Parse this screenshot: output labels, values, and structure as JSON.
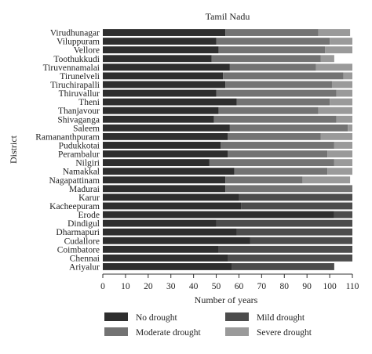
{
  "chart_data": {
    "type": "bar",
    "orientation": "horizontal",
    "stacked": true,
    "title": "Tamil Nadu",
    "xlabel": "Number of years",
    "ylabel": "District",
    "xlim": [
      0,
      110
    ],
    "xticks": [
      "0",
      "10",
      "20",
      "30",
      "40",
      "50",
      "60",
      "70",
      "80",
      "90",
      "100",
      "110"
    ],
    "grid": false,
    "legend_position": "bottom",
    "categories": [
      "Virudhunagar",
      "Viluppuram",
      "Vellore",
      "Toothukkudi",
      "Tiruvennamalai",
      "Tirunelveli",
      "Tiruchirapalli",
      "Thiruvallur",
      "Theni",
      "Thanjavour",
      "Shivaganga",
      "Saleem",
      "Ramananthpuram",
      "Pudukkotai",
      "Perambalur",
      "Nilgiri",
      "Namakkal",
      "Nagapattinam",
      "Madurai",
      "Karur",
      "Kacheepuram",
      "Erode",
      "Dindigul",
      "Dharmapuri",
      "Cudallore",
      "Coimbatore",
      "Chennai",
      "Ariyalur"
    ],
    "series": [
      {
        "name": "No drought",
        "color": "#2e2e2e",
        "values": [
          54,
          50,
          51,
          48,
          56,
          53,
          54,
          50,
          59,
          51,
          49,
          56,
          55,
          52,
          55,
          47,
          58,
          54,
          54,
          60,
          61,
          102,
          50,
          59,
          65,
          51,
          55,
          57
        ]
      },
      {
        "name": "Mild drought",
        "color": "#4c4c4c",
        "values": [
          0,
          0,
          0,
          0,
          0,
          0,
          0,
          0,
          0,
          0,
          0,
          0,
          0,
          0,
          0,
          0,
          0,
          0,
          0,
          50,
          49,
          8,
          60,
          51,
          45,
          59,
          55,
          45
        ]
      },
      {
        "name": "Moderate drought",
        "color": "#737373",
        "values": [
          41,
          50,
          47,
          48,
          38,
          53,
          47,
          53,
          41,
          44,
          54,
          52,
          41,
          50,
          44,
          55,
          41,
          34,
          56,
          0,
          0,
          0,
          0,
          0,
          0,
          0,
          0,
          0
        ]
      },
      {
        "name": "Severe drought",
        "color": "#9a9a9a",
        "values": [
          14,
          10,
          12,
          6,
          16,
          4,
          9,
          7,
          10,
          15,
          7,
          2,
          14,
          8,
          11,
          8,
          11,
          21,
          0,
          0,
          0,
          0,
          0,
          0,
          0,
          0,
          0,
          0
        ]
      }
    ]
  }
}
